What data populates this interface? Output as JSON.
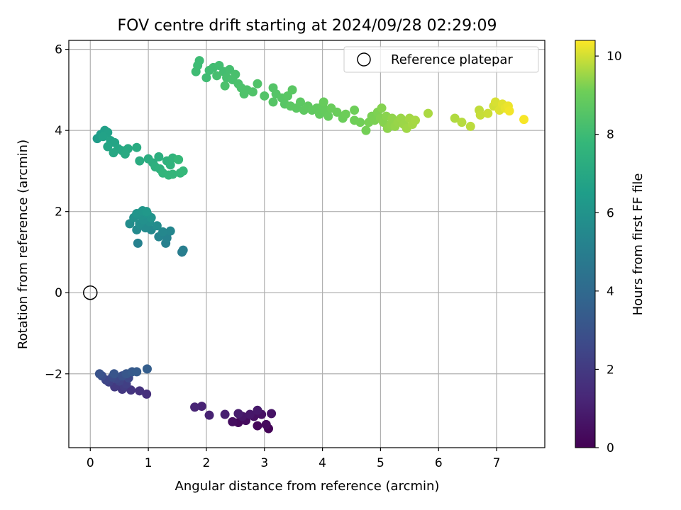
{
  "chart_data": {
    "type": "scatter",
    "title": "FOV centre drift starting at 2024/09/28 02:29:09",
    "xlabel": "Angular distance from reference (arcmin)",
    "ylabel": "Rotation from reference (arcmin)",
    "xlim": [
      -0.37,
      7.83
    ],
    "ylim": [
      -3.82,
      6.22
    ],
    "xticks": [
      0,
      1,
      2,
      3,
      4,
      5,
      6,
      7
    ],
    "yticks": [
      -2,
      0,
      2,
      4,
      6
    ],
    "grid": true,
    "legend": {
      "placement": "top-right",
      "entries": [
        "Reference platepar"
      ]
    },
    "reference_point": {
      "x": 0,
      "y": 0,
      "label": "Reference platepar"
    },
    "colorbar": {
      "label": "Hours from first FF file",
      "range": [
        0,
        10.4
      ],
      "ticks": [
        0,
        2,
        4,
        6,
        8,
        10
      ],
      "colormap": "viridis"
    },
    "points": [
      {
        "x": 3.07,
        "y": -3.35,
        "c": 0.1
      },
      {
        "x": 2.88,
        "y": -3.28,
        "c": 0.2
      },
      {
        "x": 2.55,
        "y": -3.2,
        "c": 0.25
      },
      {
        "x": 3.03,
        "y": -3.25,
        "c": 0.3
      },
      {
        "x": 2.68,
        "y": -3.15,
        "c": 0.35
      },
      {
        "x": 2.45,
        "y": -3.18,
        "c": 0.4
      },
      {
        "x": 2.82,
        "y": -3.05,
        "c": 0.5
      },
      {
        "x": 2.95,
        "y": -3.0,
        "c": 0.55
      },
      {
        "x": 3.12,
        "y": -2.98,
        "c": 0.6
      },
      {
        "x": 2.62,
        "y": -3.05,
        "c": 0.7
      },
      {
        "x": 2.75,
        "y": -3.0,
        "c": 0.75
      },
      {
        "x": 2.88,
        "y": -2.9,
        "c": 0.8
      },
      {
        "x": 2.55,
        "y": -2.98,
        "c": 0.9
      },
      {
        "x": 2.32,
        "y": -3.0,
        "c": 1.0
      },
      {
        "x": 2.05,
        "y": -3.02,
        "c": 1.1
      },
      {
        "x": 1.92,
        "y": -2.8,
        "c": 1.15
      },
      {
        "x": 1.8,
        "y": -2.82,
        "c": 1.2
      },
      {
        "x": 0.97,
        "y": -2.5,
        "c": 1.6
      },
      {
        "x": 0.85,
        "y": -2.42,
        "c": 1.7
      },
      {
        "x": 0.7,
        "y": -2.4,
        "c": 1.8
      },
      {
        "x": 0.55,
        "y": -2.38,
        "c": 1.9
      },
      {
        "x": 0.42,
        "y": -2.32,
        "c": 2.0
      },
      {
        "x": 0.58,
        "y": -2.3,
        "c": 2.1
      },
      {
        "x": 0.62,
        "y": -2.25,
        "c": 2.2
      },
      {
        "x": 0.32,
        "y": -2.2,
        "c": 2.3
      },
      {
        "x": 0.5,
        "y": -2.18,
        "c": 2.4
      },
      {
        "x": 0.27,
        "y": -2.15,
        "c": 2.5
      },
      {
        "x": 0.45,
        "y": -2.12,
        "c": 2.55
      },
      {
        "x": 0.66,
        "y": -2.1,
        "c": 2.6
      },
      {
        "x": 0.38,
        "y": -2.08,
        "c": 2.7
      },
      {
        "x": 0.2,
        "y": -2.05,
        "c": 2.8
      },
      {
        "x": 0.55,
        "y": -2.05,
        "c": 2.9
      },
      {
        "x": 0.16,
        "y": -2.0,
        "c": 3.0
      },
      {
        "x": 0.41,
        "y": -2.0,
        "c": 3.1
      },
      {
        "x": 0.62,
        "y": -2.0,
        "c": 3.2
      },
      {
        "x": 0.72,
        "y": -1.95,
        "c": 3.3
      },
      {
        "x": 0.8,
        "y": -1.95,
        "c": 3.4
      },
      {
        "x": 0.98,
        "y": -1.88,
        "c": 3.5
      },
      {
        "x": 1.58,
        "y": 1.0,
        "c": 4.9
      },
      {
        "x": 1.6,
        "y": 1.05,
        "c": 5.0
      },
      {
        "x": 1.3,
        "y": 1.22,
        "c": 5.1
      },
      {
        "x": 0.82,
        "y": 1.22,
        "c": 5.15
      },
      {
        "x": 1.32,
        "y": 1.35,
        "c": 5.2
      },
      {
        "x": 1.18,
        "y": 1.38,
        "c": 5.3
      },
      {
        "x": 1.38,
        "y": 1.52,
        "c": 5.4
      },
      {
        "x": 1.25,
        "y": 1.5,
        "c": 5.45
      },
      {
        "x": 1.05,
        "y": 1.55,
        "c": 5.5
      },
      {
        "x": 0.8,
        "y": 1.55,
        "c": 5.55
      },
      {
        "x": 0.95,
        "y": 1.6,
        "c": 5.6
      },
      {
        "x": 1.15,
        "y": 1.65,
        "c": 5.65
      },
      {
        "x": 0.68,
        "y": 1.7,
        "c": 5.7
      },
      {
        "x": 0.85,
        "y": 1.7,
        "c": 5.75
      },
      {
        "x": 1.02,
        "y": 1.75,
        "c": 5.8
      },
      {
        "x": 0.92,
        "y": 1.8,
        "c": 5.85
      },
      {
        "x": 0.75,
        "y": 1.85,
        "c": 5.9
      },
      {
        "x": 0.88,
        "y": 1.9,
        "c": 5.95
      },
      {
        "x": 1.05,
        "y": 1.85,
        "c": 6.0
      },
      {
        "x": 0.98,
        "y": 1.95,
        "c": 6.05
      },
      {
        "x": 0.8,
        "y": 1.95,
        "c": 6.1
      },
      {
        "x": 0.9,
        "y": 2.02,
        "c": 6.15
      },
      {
        "x": 0.97,
        "y": 2.0,
        "c": 6.2
      },
      {
        "x": 0.12,
        "y": 3.8,
        "c": 6.4
      },
      {
        "x": 0.18,
        "y": 3.9,
        "c": 6.5
      },
      {
        "x": 0.25,
        "y": 4.0,
        "c": 6.6
      },
      {
        "x": 0.3,
        "y": 3.95,
        "c": 6.65
      },
      {
        "x": 0.22,
        "y": 3.85,
        "c": 6.7
      },
      {
        "x": 0.35,
        "y": 3.75,
        "c": 6.75
      },
      {
        "x": 0.42,
        "y": 3.7,
        "c": 6.8
      },
      {
        "x": 0.3,
        "y": 3.6,
        "c": 6.85
      },
      {
        "x": 0.48,
        "y": 3.55,
        "c": 6.9
      },
      {
        "x": 0.4,
        "y": 3.45,
        "c": 6.95
      },
      {
        "x": 0.55,
        "y": 3.5,
        "c": 7.0
      },
      {
        "x": 0.65,
        "y": 3.55,
        "c": 7.05
      },
      {
        "x": 0.6,
        "y": 3.42,
        "c": 7.1
      },
      {
        "x": 0.8,
        "y": 3.58,
        "c": 7.15
      },
      {
        "x": 0.85,
        "y": 3.25,
        "c": 7.2
      },
      {
        "x": 1.0,
        "y": 3.3,
        "c": 7.25
      },
      {
        "x": 1.08,
        "y": 3.2,
        "c": 7.3
      },
      {
        "x": 1.18,
        "y": 3.35,
        "c": 7.35
      },
      {
        "x": 1.12,
        "y": 3.1,
        "c": 7.4
      },
      {
        "x": 1.2,
        "y": 3.05,
        "c": 7.45
      },
      {
        "x": 1.32,
        "y": 3.25,
        "c": 7.5
      },
      {
        "x": 1.38,
        "y": 3.15,
        "c": 7.55
      },
      {
        "x": 1.42,
        "y": 3.32,
        "c": 7.6
      },
      {
        "x": 1.25,
        "y": 2.95,
        "c": 7.65
      },
      {
        "x": 1.35,
        "y": 2.9,
        "c": 7.7
      },
      {
        "x": 1.42,
        "y": 2.92,
        "c": 7.72
      },
      {
        "x": 1.55,
        "y": 2.95,
        "c": 7.75
      },
      {
        "x": 1.6,
        "y": 3.0,
        "c": 7.8
      },
      {
        "x": 1.52,
        "y": 3.28,
        "c": 7.82
      },
      {
        "x": 1.88,
        "y": 5.72,
        "c": 8.0
      },
      {
        "x": 1.85,
        "y": 5.6,
        "c": 8.0
      },
      {
        "x": 1.82,
        "y": 5.45,
        "c": 8.02
      },
      {
        "x": 2.0,
        "y": 5.3,
        "c": 8.05
      },
      {
        "x": 2.05,
        "y": 5.48,
        "c": 8.08
      },
      {
        "x": 2.12,
        "y": 5.55,
        "c": 8.1
      },
      {
        "x": 2.22,
        "y": 5.6,
        "c": 8.12
      },
      {
        "x": 2.3,
        "y": 5.45,
        "c": 8.15
      },
      {
        "x": 2.4,
        "y": 5.5,
        "c": 8.18
      },
      {
        "x": 2.18,
        "y": 5.35,
        "c": 8.2
      },
      {
        "x": 2.35,
        "y": 5.3,
        "c": 8.22
      },
      {
        "x": 2.45,
        "y": 5.25,
        "c": 8.25
      },
      {
        "x": 2.5,
        "y": 5.38,
        "c": 8.28
      },
      {
        "x": 2.55,
        "y": 5.15,
        "c": 8.3
      },
      {
        "x": 2.32,
        "y": 5.1,
        "c": 8.32
      },
      {
        "x": 2.6,
        "y": 5.05,
        "c": 8.35
      },
      {
        "x": 2.7,
        "y": 5.0,
        "c": 8.38
      },
      {
        "x": 2.65,
        "y": 4.9,
        "c": 8.4
      },
      {
        "x": 2.8,
        "y": 4.95,
        "c": 8.42
      },
      {
        "x": 2.88,
        "y": 5.15,
        "c": 8.45
      },
      {
        "x": 3.0,
        "y": 4.85,
        "c": 8.48
      },
      {
        "x": 3.15,
        "y": 5.05,
        "c": 8.5
      },
      {
        "x": 3.2,
        "y": 4.9,
        "c": 8.52
      },
      {
        "x": 3.15,
        "y": 4.7,
        "c": 8.55
      },
      {
        "x": 3.3,
        "y": 4.8,
        "c": 8.58
      },
      {
        "x": 3.35,
        "y": 4.65,
        "c": 8.6
      },
      {
        "x": 3.4,
        "y": 4.85,
        "c": 8.62
      },
      {
        "x": 3.48,
        "y": 5.0,
        "c": 8.65
      },
      {
        "x": 3.45,
        "y": 4.6,
        "c": 8.68
      },
      {
        "x": 3.55,
        "y": 4.55,
        "c": 8.7
      },
      {
        "x": 3.62,
        "y": 4.7,
        "c": 8.72
      },
      {
        "x": 3.68,
        "y": 4.5,
        "c": 8.75
      },
      {
        "x": 3.75,
        "y": 4.6,
        "c": 8.78
      },
      {
        "x": 3.82,
        "y": 4.5,
        "c": 8.8
      },
      {
        "x": 3.9,
        "y": 4.55,
        "c": 8.82
      },
      {
        "x": 3.95,
        "y": 4.4,
        "c": 8.85
      },
      {
        "x": 4.0,
        "y": 4.6,
        "c": 8.88
      },
      {
        "x": 4.05,
        "y": 4.5,
        "c": 8.9
      },
      {
        "x": 4.1,
        "y": 4.35,
        "c": 8.92
      },
      {
        "x": 4.02,
        "y": 4.7,
        "c": 8.95
      },
      {
        "x": 4.15,
        "y": 4.55,
        "c": 8.98
      },
      {
        "x": 4.25,
        "y": 4.45,
        "c": 9.0
      },
      {
        "x": 4.35,
        "y": 4.3,
        "c": 9.02
      },
      {
        "x": 4.4,
        "y": 4.4,
        "c": 9.05
      },
      {
        "x": 4.55,
        "y": 4.5,
        "c": 9.08
      },
      {
        "x": 4.55,
        "y": 4.25,
        "c": 9.1
      },
      {
        "x": 4.65,
        "y": 4.2,
        "c": 9.12
      },
      {
        "x": 4.75,
        "y": 4.0,
        "c": 9.15
      },
      {
        "x": 4.8,
        "y": 4.2,
        "c": 9.18
      },
      {
        "x": 4.85,
        "y": 4.35,
        "c": 9.2
      },
      {
        "x": 4.9,
        "y": 4.25,
        "c": 9.22
      },
      {
        "x": 4.95,
        "y": 4.45,
        "c": 9.25
      },
      {
        "x": 5.0,
        "y": 4.3,
        "c": 9.28
      },
      {
        "x": 5.02,
        "y": 4.55,
        "c": 9.3
      },
      {
        "x": 5.05,
        "y": 4.2,
        "c": 9.32
      },
      {
        "x": 5.1,
        "y": 4.35,
        "c": 9.35
      },
      {
        "x": 5.12,
        "y": 4.05,
        "c": 9.38
      },
      {
        "x": 5.18,
        "y": 4.15,
        "c": 9.4
      },
      {
        "x": 5.2,
        "y": 4.3,
        "c": 9.42
      },
      {
        "x": 5.25,
        "y": 4.1,
        "c": 9.45
      },
      {
        "x": 5.3,
        "y": 4.2,
        "c": 9.48
      },
      {
        "x": 5.35,
        "y": 4.3,
        "c": 9.5
      },
      {
        "x": 5.4,
        "y": 4.15,
        "c": 9.52
      },
      {
        "x": 5.45,
        "y": 4.05,
        "c": 9.55
      },
      {
        "x": 5.5,
        "y": 4.3,
        "c": 9.58
      },
      {
        "x": 5.55,
        "y": 4.15,
        "c": 9.6
      },
      {
        "x": 5.6,
        "y": 4.25,
        "c": 9.62
      },
      {
        "x": 5.82,
        "y": 4.42,
        "c": 9.65
      },
      {
        "x": 6.28,
        "y": 4.3,
        "c": 9.7
      },
      {
        "x": 6.4,
        "y": 4.2,
        "c": 9.75
      },
      {
        "x": 6.55,
        "y": 4.1,
        "c": 9.8
      },
      {
        "x": 6.7,
        "y": 4.5,
        "c": 9.85
      },
      {
        "x": 6.72,
        "y": 4.38,
        "c": 9.9
      },
      {
        "x": 6.85,
        "y": 4.42,
        "c": 9.95
      },
      {
        "x": 6.95,
        "y": 4.6,
        "c": 10.0
      },
      {
        "x": 6.98,
        "y": 4.7,
        "c": 10.05
      },
      {
        "x": 7.05,
        "y": 4.5,
        "c": 10.1
      },
      {
        "x": 7.1,
        "y": 4.65,
        "c": 10.15
      },
      {
        "x": 7.15,
        "y": 4.55,
        "c": 10.2
      },
      {
        "x": 7.2,
        "y": 4.6,
        "c": 10.25
      },
      {
        "x": 7.22,
        "y": 4.48,
        "c": 10.3
      },
      {
        "x": 7.47,
        "y": 4.27,
        "c": 10.35
      }
    ]
  }
}
